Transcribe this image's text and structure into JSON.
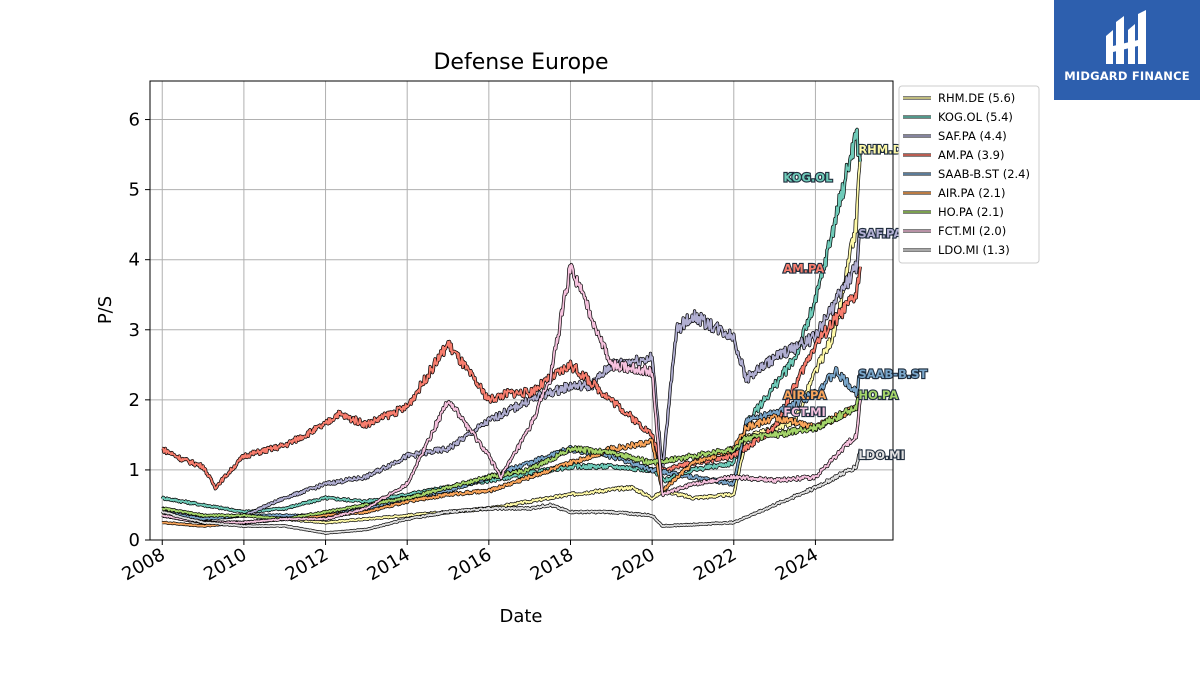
{
  "chart_data": {
    "type": "line",
    "title": "Defense Europe",
    "xlabel": "Date",
    "ylabel": "P/S",
    "xlim": [
      2007.7,
      2025.9
    ],
    "ylim": [
      0,
      6.55
    ],
    "x_ticks": [
      "2008",
      "2010",
      "2012",
      "2014",
      "2016",
      "2018",
      "2020",
      "2022",
      "2024"
    ],
    "y_ticks": [
      "0",
      "1",
      "2",
      "3",
      "4",
      "5",
      "6"
    ],
    "grid": true,
    "legend_position": "right, outside plot",
    "series": [
      {
        "name": "RHM.DE (5.6)",
        "end_label": "RHM.DE",
        "color": "#fffaa8",
        "x": [
          2008,
          2009,
          2010,
          2011,
          2012,
          2013,
          2014,
          2015,
          2016,
          2017,
          2018,
          2019,
          2019.5,
          2020,
          2020.3,
          2021,
          2022,
          2022.3,
          2023,
          2023.5,
          2024,
          2024.5,
          2025,
          2025.1
        ],
        "y": [
          0.35,
          0.25,
          0.25,
          0.3,
          0.25,
          0.3,
          0.35,
          0.4,
          0.45,
          0.55,
          0.65,
          0.72,
          0.75,
          0.6,
          0.7,
          0.6,
          0.65,
          1.45,
          1.6,
          1.7,
          2.4,
          3.0,
          4.5,
          5.6
        ]
      },
      {
        "name": "KOG.OL (5.4)",
        "end_label": "KOG.OL",
        "color": "#6fcbb9",
        "x": [
          2008,
          2009,
          2010,
          2011,
          2012,
          2013,
          2014,
          2015,
          2016,
          2017,
          2018,
          2019,
          2020,
          2020.3,
          2021,
          2022,
          2022.3,
          2023,
          2023.5,
          2024,
          2024.5,
          2025,
          2025.1
        ],
        "y": [
          0.6,
          0.5,
          0.4,
          0.45,
          0.6,
          0.55,
          0.65,
          0.75,
          0.85,
          0.95,
          1.05,
          1.05,
          1.0,
          0.85,
          1.0,
          1.1,
          1.65,
          2.2,
          2.6,
          3.4,
          4.6,
          5.8,
          5.4
        ]
      },
      {
        "name": "SAF.PA (4.4)",
        "end_label": "SAF.PA",
        "color": "#b1afd2",
        "x": [
          2008,
          2009,
          2010,
          2011,
          2012,
          2013,
          2014,
          2015,
          2016,
          2017,
          2018,
          2018.5,
          2019,
          2020,
          2020.25,
          2020.6,
          2021,
          2022,
          2022.3,
          2023,
          2024,
          2025,
          2025.1
        ],
        "y": [
          0.45,
          0.3,
          0.35,
          0.6,
          0.8,
          0.9,
          1.2,
          1.3,
          1.7,
          2.0,
          2.2,
          2.2,
          2.5,
          2.6,
          1.0,
          3.0,
          3.2,
          2.9,
          2.3,
          2.6,
          2.9,
          3.9,
          4.4
        ]
      },
      {
        "name": "AM.PA (3.9)",
        "end_label": "AM.PA",
        "color": "#f87e6e",
        "x": [
          2008,
          2008.5,
          2009,
          2009.3,
          2010,
          2011,
          2012,
          2012.3,
          2013,
          2014,
          2015,
          2016,
          2016.5,
          2017,
          2018,
          2019,
          2020,
          2020.25,
          2021,
          2022,
          2023,
          2024,
          2025,
          2025.1
        ],
        "y": [
          1.3,
          1.15,
          1.05,
          0.75,
          1.2,
          1.35,
          1.65,
          1.8,
          1.65,
          1.9,
          2.8,
          2.0,
          2.1,
          2.1,
          2.5,
          2.0,
          1.5,
          1.0,
          1.1,
          1.2,
          1.6,
          2.8,
          3.5,
          3.9
        ]
      },
      {
        "name": "SAAB-B.ST (2.4)",
        "end_label": "SAAB-B.ST",
        "color": "#7aa6ca",
        "x": [
          2008,
          2009,
          2010,
          2011,
          2012,
          2013,
          2014,
          2015,
          2016,
          2017,
          2018,
          2019,
          2020,
          2021,
          2022,
          2022.3,
          2023,
          2024,
          2024.5,
          2025,
          2025.1
        ],
        "y": [
          0.4,
          0.3,
          0.35,
          0.35,
          0.35,
          0.45,
          0.6,
          0.7,
          0.9,
          1.1,
          1.3,
          1.2,
          1.0,
          0.9,
          0.8,
          1.7,
          1.8,
          2.1,
          2.4,
          2.1,
          2.4
        ]
      },
      {
        "name": "AIR.PA (2.1)",
        "end_label": "AIR.PA",
        "color": "#f9a55b",
        "x": [
          2008,
          2009,
          2010,
          2011,
          2012,
          2013,
          2014,
          2015,
          2016,
          2017,
          2018,
          2019,
          2020,
          2020.25,
          2021,
          2022,
          2022.3,
          2023,
          2024,
          2025,
          2025.1
        ],
        "y": [
          0.25,
          0.2,
          0.25,
          0.3,
          0.35,
          0.4,
          0.55,
          0.65,
          0.7,
          0.9,
          1.1,
          1.3,
          1.4,
          0.7,
          1.1,
          1.3,
          1.6,
          1.75,
          1.6,
          1.9,
          2.1
        ]
      },
      {
        "name": "HO.PA (2.1)",
        "end_label": "HO.PA",
        "color": "#a5d56a",
        "x": [
          2008,
          2009,
          2010,
          2011,
          2012,
          2013,
          2014,
          2015,
          2016,
          2017,
          2018,
          2019,
          2020,
          2021,
          2022,
          2022.3,
          2023,
          2024,
          2025,
          2025.1
        ],
        "y": [
          0.45,
          0.35,
          0.35,
          0.3,
          0.4,
          0.5,
          0.6,
          0.75,
          0.9,
          1.0,
          1.3,
          1.25,
          1.1,
          1.2,
          1.3,
          1.45,
          1.5,
          1.6,
          1.9,
          2.1
        ]
      },
      {
        "name": "FCT.MI (2.0)",
        "end_label": "FCT.MI",
        "color": "#f6c2de",
        "x": [
          2008,
          2009,
          2010,
          2011,
          2012,
          2013,
          2014,
          2015,
          2016,
          2016.3,
          2017,
          2017.5,
          2018,
          2018.5,
          2019,
          2020,
          2020.25,
          2021,
          2022,
          2023,
          2024,
          2025,
          2025.1
        ],
        "y": [
          0.35,
          0.25,
          0.25,
          0.3,
          0.3,
          0.45,
          0.8,
          2.0,
          1.2,
          0.9,
          1.6,
          2.3,
          3.9,
          3.2,
          2.5,
          2.4,
          0.65,
          0.8,
          0.9,
          0.85,
          0.9,
          1.5,
          2.0
        ]
      },
      {
        "name": "LDO.MI (1.3)",
        "end_label": "LDO.MI",
        "color": "#e0e0e0",
        "x": [
          2008,
          2009,
          2010,
          2011,
          2012,
          2013,
          2014,
          2015,
          2016,
          2017,
          2017.5,
          2018,
          2019,
          2020,
          2020.25,
          2021,
          2022,
          2023,
          2024,
          2024.5,
          2025,
          2025.1
        ],
        "y": [
          0.4,
          0.25,
          0.2,
          0.2,
          0.1,
          0.15,
          0.3,
          0.4,
          0.45,
          0.45,
          0.5,
          0.4,
          0.4,
          0.35,
          0.2,
          0.22,
          0.25,
          0.5,
          0.75,
          0.9,
          1.05,
          1.3
        ]
      }
    ]
  },
  "brand": {
    "name": "MIDGARD FINANCE",
    "background_color": "#2d5fae",
    "logo_icon": "midgard-logo-icon"
  }
}
